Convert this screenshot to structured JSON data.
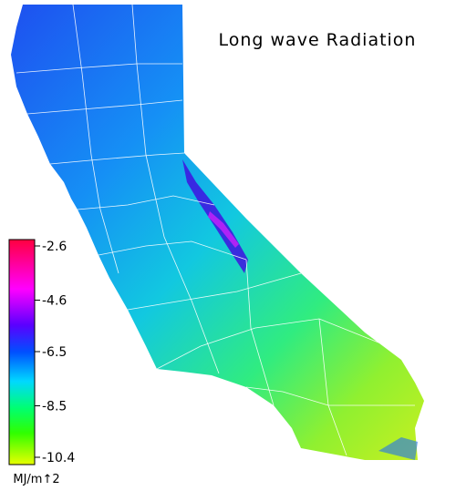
{
  "title": "Long wave Radiation",
  "legend": {
    "ticks": [
      -2.6,
      -4.6,
      -6.5,
      -8.5,
      -10.4
    ],
    "unit": "MJ/m↑2"
  }
}
